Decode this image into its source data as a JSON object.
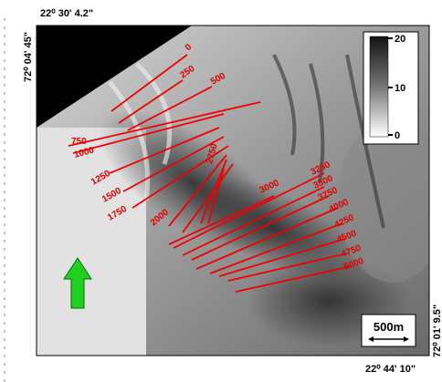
{
  "coordinates": {
    "top_left": "22⁰ 30' 4.2\"",
    "left": "72⁰ 04' 45\"",
    "right": "72⁰ 01' 9.5\"",
    "bottom_right": "22⁰ 44' 10\""
  },
  "colorbar": {
    "ticks": [
      "20",
      "10",
      "0"
    ]
  },
  "transects": [
    "0",
    "250",
    "500",
    "750",
    "1000",
    "1250",
    "1500",
    "1750",
    "2000",
    "2750",
    "3000",
    "3250",
    "3500",
    "3750",
    "4000",
    "4250",
    "4500",
    "4750",
    "5000"
  ],
  "scale_bar": "500m"
}
